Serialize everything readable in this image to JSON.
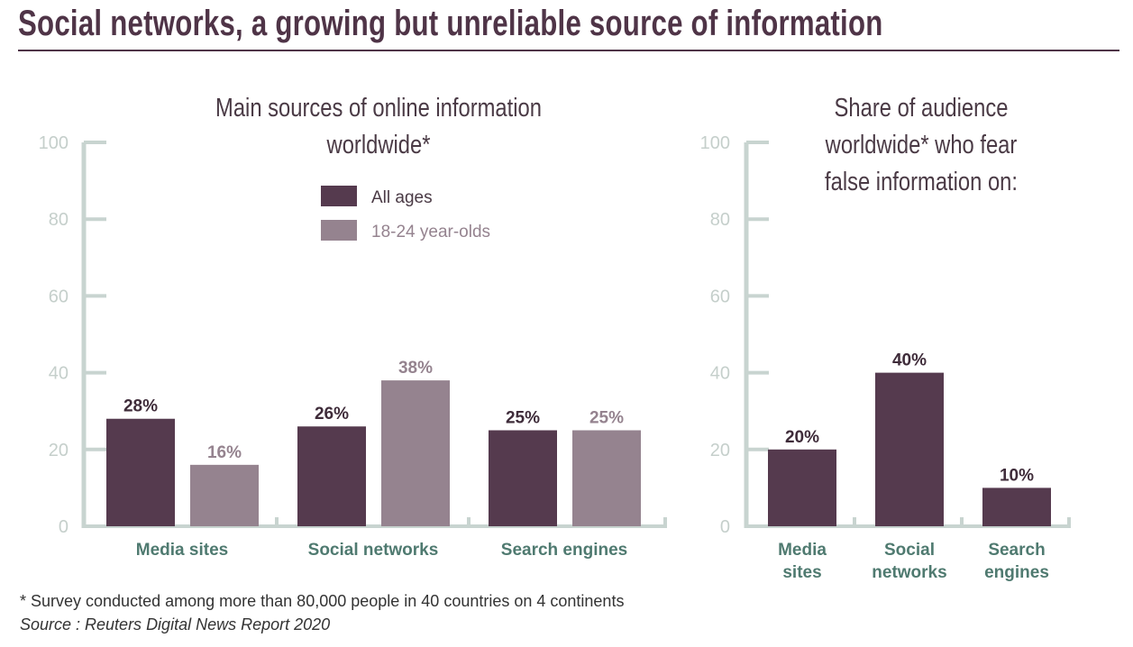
{
  "title": "Social networks, a growing but unreliable source of information",
  "footnote": "* Survey conducted among more than 80,000 people in 40 countries on 4 continents",
  "source": "Source : Reuters Digital News Report 2020",
  "colors": {
    "dark": "#553a4e",
    "light": "#95838f",
    "axis": "#c8d4d0",
    "category_label": "#4f7a70"
  },
  "chart_data": [
    {
      "type": "bar",
      "title": [
        "Main sources of online information",
        "worldwide*"
      ],
      "categories": [
        "Media sites",
        "Social networks",
        "Search engines"
      ],
      "series": [
        {
          "name": "All ages",
          "values": [
            28,
            26,
            25
          ],
          "labels": [
            "28%",
            "26%",
            "25%"
          ],
          "color": "#553a4e"
        },
        {
          "name": "18-24 year-olds",
          "values": [
            16,
            38,
            25
          ],
          "labels": [
            "16%",
            "38%",
            "25%"
          ],
          "color": "#95838f"
        }
      ],
      "ylim": [
        0,
        100
      ],
      "yticks": [
        "0",
        "20",
        "40",
        "60",
        "80",
        "100"
      ],
      "legend": "top-center",
      "grid": false
    },
    {
      "type": "bar",
      "title": [
        "Share of audience",
        "worldwide* who fear",
        "false information on:"
      ],
      "categories": [
        [
          "Media",
          "sites"
        ],
        [
          "Social",
          "networks"
        ],
        [
          "Search",
          "engines"
        ]
      ],
      "series": [
        {
          "values": [
            20,
            40,
            10
          ],
          "labels": [
            "20%",
            "40%",
            "10%"
          ],
          "color": "#553a4e"
        }
      ],
      "ylim": [
        0,
        100
      ],
      "yticks": [
        "0",
        "20",
        "40",
        "60",
        "80",
        "100"
      ],
      "grid": false
    }
  ]
}
